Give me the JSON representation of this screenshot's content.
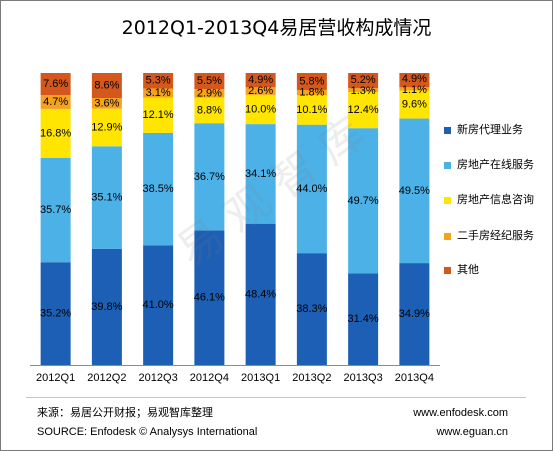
{
  "chart_data": {
    "type": "bar",
    "stacked": true,
    "normalized": true,
    "title": "2012Q1-2013Q4易居营收构成情况",
    "categories": [
      "2012Q1",
      "2012Q2",
      "2012Q3",
      "2012Q4",
      "2013Q1",
      "2013Q2",
      "2013Q3",
      "2013Q4"
    ],
    "unit": "%",
    "ylim": [
      0,
      100
    ],
    "grid": false,
    "legend": "right",
    "series": [
      {
        "name": "新房代理业务",
        "color": "#1C5FB4",
        "values": [
          35.2,
          39.8,
          41.0,
          46.1,
          48.4,
          38.3,
          31.4,
          34.9
        ]
      },
      {
        "name": "房地产在线服务",
        "color": "#4CB1E7",
        "values": [
          35.7,
          35.1,
          38.5,
          36.7,
          34.1,
          44.0,
          49.7,
          49.5
        ]
      },
      {
        "name": "房地产信息咨询",
        "color": "#FFE500",
        "values": [
          16.8,
          12.9,
          12.1,
          8.8,
          10.0,
          10.1,
          12.4,
          9.6
        ]
      },
      {
        "name": "二手房经纪服务",
        "color": "#F6A21D",
        "values": [
          4.7,
          3.6,
          3.1,
          2.9,
          2.6,
          1.8,
          1.3,
          1.1
        ]
      },
      {
        "name": "其他",
        "color": "#D4581C",
        "values": [
          7.6,
          8.6,
          5.3,
          5.5,
          4.9,
          5.8,
          5.2,
          4.9
        ]
      }
    ]
  },
  "watermark": "易观智库",
  "footer": {
    "source_cn": "来源：易居公开财报；易观智库整理",
    "source_en": "SOURCE: Enfodesk © Analysys International",
    "url_left": "www.enfodesk.com",
    "url_right": "www.eguan.cn"
  }
}
